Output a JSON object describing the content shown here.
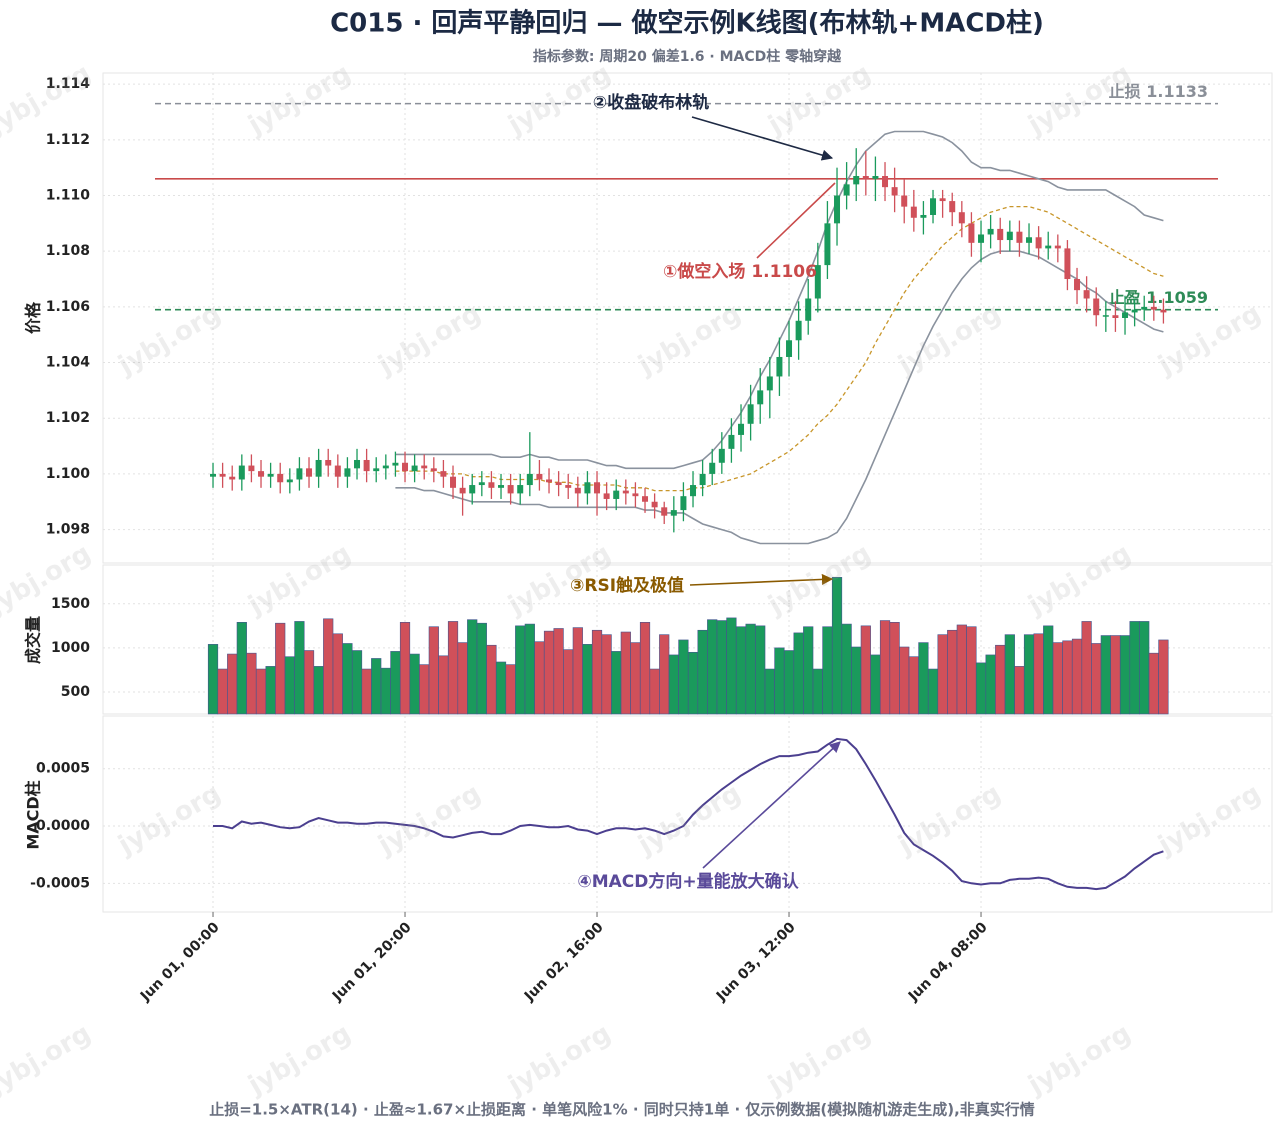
{
  "chart_data": {
    "type": "candlestick",
    "title": "C015 · 回声平静回归 — 做空示例K线图(布林轨+MACD柱)",
    "subtitle": "指标参数: 周期20 偏差1.6 · MACD柱 零轴穿越",
    "footer": "止损=1.5×ATR(14) · 止盈≈1.67×止损距离 · 单笔风险1% · 同时只持1单 · 仅示例数据(模拟随机游走生成),非真实行情",
    "watermark": "jybj.org",
    "ylabel": "价格",
    "up_color": "#1a9a5c",
    "down_color": "#d0505a",
    "x": [
      0,
      1,
      2,
      3,
      4,
      5,
      6,
      7,
      8,
      9,
      10,
      11,
      12,
      13,
      14,
      15,
      16,
      17,
      18,
      19,
      20,
      21,
      22,
      23,
      24,
      25,
      26,
      27,
      28,
      29,
      30,
      31,
      32,
      33,
      34,
      35,
      36,
      37,
      38,
      39,
      40,
      41,
      42,
      43,
      44,
      45,
      46,
      47,
      48,
      49,
      50,
      51,
      52,
      53,
      54,
      55,
      56,
      57,
      58,
      59,
      60,
      61,
      62,
      63,
      64,
      65,
      66,
      67,
      68,
      69,
      70,
      71,
      72,
      73,
      74,
      75,
      76,
      77,
      78,
      79,
      80,
      81,
      82,
      83,
      84,
      85,
      86,
      87,
      88,
      89,
      90,
      91,
      92,
      93,
      94,
      95,
      96,
      97,
      98,
      99
    ],
    "xlim": [
      -11.46,
      110.31
    ],
    "xticks": [
      {
        "value": 0,
        "label": "Jun 01, 00:00"
      },
      {
        "value": 20,
        "label": "Jun 01, 20:00"
      },
      {
        "value": 40,
        "label": "Jun 02, 16:00"
      },
      {
        "value": 60,
        "label": "Jun 03, 12:00"
      },
      {
        "value": 80,
        "label": "Jun 04, 08:00"
      }
    ],
    "open": [
      1.0999,
      1.1,
      1.0999,
      1.0998,
      1.1003,
      1.1001,
      1.0999,
      1.1,
      1.0997,
      1.0998,
      1.1002,
      1.0999,
      1.1005,
      1.1003,
      1.0999,
      1.1002,
      1.1005,
      1.1001,
      1.1002,
      1.1003,
      1.1004,
      1.1001,
      1.1003,
      1.1002,
      1.1001,
      1.0999,
      1.0995,
      1.0993,
      1.0996,
      1.0997,
      1.0995,
      1.0996,
      1.0993,
      1.0996,
      1.1,
      1.0998,
      1.0997,
      1.0996,
      1.0995,
      1.0993,
      1.0997,
      1.0993,
      1.0991,
      1.0994,
      1.0993,
      1.0992,
      1.099,
      1.0988,
      1.0985,
      1.0987,
      1.0992,
      1.0996,
      1.1,
      1.1004,
      1.1009,
      1.1014,
      1.1018,
      1.1025,
      1.103,
      1.1035,
      1.1042,
      1.1048,
      1.1055,
      1.1063,
      1.1075,
      1.109,
      1.11,
      1.1104,
      1.1107,
      1.1106,
      1.1107,
      1.1103,
      1.11,
      1.1096,
      1.1092,
      1.1093,
      1.1099,
      1.1098,
      1.1094,
      1.109,
      1.1083,
      1.1086,
      1.1088,
      1.1084,
      1.1087,
      1.1083,
      1.1085,
      1.1081,
      1.1082,
      1.1081,
      1.107,
      1.1066,
      1.1063,
      1.1057,
      1.1057,
      1.1056,
      1.1058,
      1.1059,
      1.106,
      1.1059
    ],
    "high": [
      1.1004,
      1.1004,
      1.1003,
      1.1007,
      1.1007,
      1.1005,
      1.1004,
      1.1004,
      1.1002,
      1.1006,
      1.1006,
      1.1009,
      1.1009,
      1.1007,
      1.1006,
      1.1009,
      1.1009,
      1.1006,
      1.1007,
      1.1008,
      1.1008,
      1.1007,
      1.1007,
      1.1006,
      1.1005,
      1.1003,
      1.0999,
      1.1,
      1.1001,
      1.1001,
      1.1,
      1.1,
      1.1,
      1.1015,
      1.1005,
      1.1002,
      1.1001,
      1.1,
      1.0999,
      1.1001,
      1.1001,
      1.0997,
      1.0998,
      1.0998,
      1.0997,
      1.0995,
      1.0993,
      1.099,
      1.0992,
      1.0997,
      1.1001,
      1.1005,
      1.1009,
      1.1015,
      1.102,
      1.1025,
      1.1032,
      1.1038,
      1.1042,
      1.1049,
      1.1055,
      1.1062,
      1.107,
      1.1083,
      1.1098,
      1.111,
      1.1112,
      1.1117,
      1.1116,
      1.1114,
      1.1112,
      1.111,
      1.1106,
      1.1102,
      1.1098,
      1.1102,
      1.1102,
      1.1101,
      1.1098,
      1.1094,
      1.1091,
      1.1093,
      1.1092,
      1.1091,
      1.1091,
      1.109,
      1.1089,
      1.1087,
      1.1086,
      1.1084,
      1.1074,
      1.1071,
      1.1067,
      1.1062,
      1.1062,
      1.1064,
      1.1063,
      1.1064,
      1.1064,
      1.1063
    ],
    "low": [
      1.0995,
      1.0995,
      1.0994,
      1.0994,
      1.0997,
      1.0995,
      1.0995,
      1.0993,
      1.0993,
      1.0994,
      1.0995,
      1.0995,
      1.0999,
      1.0995,
      1.0995,
      1.0998,
      1.0997,
      1.0997,
      1.0998,
      1.0999,
      1.0997,
      1.0997,
      1.0998,
      1.0997,
      1.0995,
      1.0991,
      1.0985,
      1.0989,
      1.0992,
      1.0991,
      1.0991,
      1.0989,
      1.0989,
      1.0992,
      1.0994,
      1.0993,
      1.0992,
      1.0991,
      1.0988,
      1.0989,
      1.0985,
      1.0987,
      1.0987,
      1.0989,
      1.0988,
      1.0986,
      1.0984,
      1.0982,
      1.0979,
      1.0983,
      1.0988,
      1.0992,
      1.0996,
      1.1,
      1.1004,
      1.1008,
      1.1012,
      1.1018,
      1.102,
      1.1028,
      1.1035,
      1.1041,
      1.105,
      1.1058,
      1.107,
      1.1082,
      1.1095,
      1.1098,
      1.11,
      1.1098,
      1.1098,
      1.1094,
      1.109,
      1.1087,
      1.1086,
      1.109,
      1.1092,
      1.1089,
      1.1085,
      1.1078,
      1.1076,
      1.1081,
      1.1079,
      1.108,
      1.1078,
      1.1079,
      1.1077,
      1.1077,
      1.1076,
      1.1066,
      1.1061,
      1.1058,
      1.1053,
      1.1051,
      1.1051,
      1.105,
      1.1053,
      1.1055,
      1.1055,
      1.1054
    ],
    "close": [
      1.1,
      1.0999,
      1.0998,
      1.1003,
      1.1001,
      1.0999,
      1.1,
      1.0997,
      1.0998,
      1.1002,
      1.0999,
      1.1005,
      1.1003,
      1.0999,
      1.1002,
      1.1005,
      1.1001,
      1.1002,
      1.1003,
      1.1004,
      1.1001,
      1.1003,
      1.1002,
      1.1001,
      1.0999,
      1.0995,
      1.0993,
      1.0996,
      1.0997,
      1.0995,
      1.0996,
      1.0993,
      1.0996,
      1.1,
      1.0998,
      1.0997,
      1.0996,
      1.0995,
      1.0993,
      1.0997,
      1.0993,
      1.0991,
      1.0994,
      1.0993,
      1.0992,
      1.099,
      1.0988,
      1.0985,
      1.0987,
      1.0992,
      1.0996,
      1.1,
      1.1004,
      1.1009,
      1.1014,
      1.1018,
      1.1025,
      1.103,
      1.1035,
      1.1042,
      1.1048,
      1.1055,
      1.1063,
      1.1075,
      1.109,
      1.11,
      1.1104,
      1.1107,
      1.1106,
      1.1107,
      1.1103,
      1.11,
      1.1096,
      1.1092,
      1.1093,
      1.1099,
      1.1098,
      1.1094,
      1.109,
      1.1083,
      1.1086,
      1.1088,
      1.1084,
      1.1087,
      1.1083,
      1.1085,
      1.1081,
      1.1082,
      1.1081,
      1.107,
      1.1066,
      1.1063,
      1.1057,
      1.1057,
      1.1056,
      1.1058,
      1.1059,
      1.106,
      1.1059,
      1.1058
    ],
    "ylim": [
      1.0968,
      1.1144
    ],
    "yticks": [
      1.098,
      {
        "value": 1.1,
        "label": "1.100"
      },
      1.102,
      1.104,
      1.106,
      1.108,
      {
        "value": 1.11,
        "label": "1.110"
      },
      1.112,
      1.114
    ],
    "bollinger": [
      {
        "color": "#8a929e",
        "dash": false,
        "values": [
          null,
          null,
          null,
          null,
          null,
          null,
          null,
          null,
          null,
          null,
          null,
          null,
          null,
          null,
          null,
          null,
          null,
          null,
          null,
          1.1007,
          1.1007,
          1.1007,
          1.1007,
          1.1007,
          1.1007,
          1.1007,
          1.1007,
          1.1007,
          1.1007,
          1.1007,
          1.1006,
          1.1006,
          1.1006,
          1.1007,
          1.1006,
          1.1006,
          1.1005,
          1.1005,
          1.1005,
          1.1005,
          1.1004,
          1.1003,
          1.1003,
          1.1002,
          1.1002,
          1.1002,
          1.1002,
          1.1002,
          1.1002,
          1.1003,
          1.1004,
          1.1005,
          1.1008,
          1.1012,
          1.1017,
          1.1022,
          1.1028,
          1.1035,
          1.1041,
          1.1048,
          1.1055,
          1.1063,
          1.1071,
          1.108,
          1.109,
          1.1098,
          1.1105,
          1.1111,
          1.1116,
          1.1119,
          1.1122,
          1.1123,
          1.1123,
          1.1123,
          1.1123,
          1.1122,
          1.1121,
          1.1119,
          1.1116,
          1.1112,
          1.111,
          1.111,
          1.1109,
          1.1109,
          1.1108,
          1.1107,
          1.1106,
          1.1105,
          1.1103,
          1.1102,
          1.1102,
          1.1102,
          1.1102,
          1.1102,
          1.11,
          1.1098,
          1.1096,
          1.1093,
          1.1092,
          1.1091
        ]
      },
      {
        "color": "#c8962a",
        "dash": true,
        "values": [
          null,
          null,
          null,
          null,
          null,
          null,
          null,
          null,
          null,
          null,
          null,
          null,
          null,
          null,
          null,
          null,
          null,
          null,
          null,
          1.1001,
          1.1001,
          1.1001,
          1.1001,
          1.1001,
          1.1,
          1.1,
          1.1,
          1.0999,
          1.0999,
          1.0999,
          1.0998,
          1.0998,
          1.0998,
          1.0998,
          1.0998,
          1.0997,
          1.0997,
          1.0997,
          1.0996,
          1.0996,
          1.0996,
          1.0996,
          1.0996,
          1.0995,
          1.0995,
          1.0995,
          1.0994,
          1.0994,
          1.0994,
          1.0994,
          1.0995,
          1.0995,
          1.0996,
          1.0997,
          1.0998,
          1.0999,
          1.1,
          1.1002,
          1.1004,
          1.1006,
          1.1008,
          1.1011,
          1.1014,
          1.1018,
          1.1021,
          1.1025,
          1.103,
          1.1035,
          1.104,
          1.1047,
          1.1053,
          1.1059,
          1.1065,
          1.107,
          1.1074,
          1.1078,
          1.1082,
          1.1085,
          1.1088,
          1.109,
          1.1092,
          1.1094,
          1.1095,
          1.1096,
          1.1096,
          1.1096,
          1.1095,
          1.1094,
          1.1092,
          1.109,
          1.1088,
          1.1086,
          1.1084,
          1.1082,
          1.108,
          1.1078,
          1.1076,
          1.1074,
          1.1072,
          1.1071
        ]
      },
      {
        "color": "#8a929e",
        "dash": false,
        "values": [
          null,
          null,
          null,
          null,
          null,
          null,
          null,
          null,
          null,
          null,
          null,
          null,
          null,
          null,
          null,
          null,
          null,
          null,
          null,
          1.0995,
          1.0995,
          1.0995,
          1.0994,
          1.0994,
          1.0993,
          1.0992,
          1.0991,
          1.099,
          1.099,
          1.099,
          1.099,
          1.099,
          1.0989,
          1.0989,
          1.0989,
          1.0988,
          1.0988,
          1.0988,
          1.0988,
          1.0988,
          1.0988,
          1.0988,
          1.0988,
          1.0988,
          1.0988,
          1.0987,
          1.0987,
          1.0986,
          1.0986,
          1.0986,
          1.0984,
          1.0982,
          1.0981,
          1.098,
          1.0979,
          1.0977,
          1.0976,
          1.0975,
          1.0975,
          1.0975,
          1.0975,
          1.0975,
          1.0975,
          1.0976,
          1.0977,
          1.0979,
          1.0984,
          1.0991,
          1.0998,
          1.1006,
          1.1014,
          1.1022,
          1.103,
          1.1038,
          1.1046,
          1.1053,
          1.1059,
          1.1065,
          1.107,
          1.1074,
          1.1077,
          1.1079,
          1.108,
          1.108,
          1.108,
          1.1079,
          1.1078,
          1.1076,
          1.1074,
          1.1072,
          1.107,
          1.1067,
          1.1065,
          1.1062,
          1.106,
          1.1058,
          1.1056,
          1.1054,
          1.1052,
          1.1051
        ]
      }
    ],
    "levels": [
      {
        "value": 1.1133,
        "label": "止损 1.1133",
        "color": "#8a8f98",
        "dash": true
      },
      {
        "value": 1.1106,
        "color": "#c94a4a",
        "dash": false
      },
      {
        "value": 1.1059,
        "label": "止盈 1.1059",
        "color": "#2e8b57",
        "dash": true
      }
    ],
    "annotations": [
      {
        "text": "②收盘破布林轨",
        "color": "#1e2a44"
      },
      {
        "text": "①做空入场 1.1106",
        "color": "#c94a4a"
      },
      {
        "text": "③RSI触及极值",
        "color": "#8a5a00"
      },
      {
        "text": "④MACD方向+量能放大确认",
        "color": "#5a4a9a"
      }
    ],
    "volume": {
      "ylabel": "成交量",
      "ylim": [
        250,
        1940
      ],
      "yticks": [
        500,
        1000,
        1500
      ],
      "values": [
        1040,
        760,
        930,
        1290,
        940,
        760,
        790,
        1280,
        900,
        1300,
        970,
        790,
        1330,
        1160,
        1050,
        970,
        760,
        880,
        770,
        960,
        1290,
        930,
        810,
        1240,
        910,
        1300,
        1060,
        1320,
        1280,
        1030,
        840,
        810,
        1250,
        1270,
        1070,
        1190,
        1220,
        980,
        1230,
        1040,
        1200,
        1150,
        960,
        1180,
        1060,
        1290,
        760,
        1150,
        920,
        1090,
        950,
        1200,
        1320,
        1310,
        1340,
        1240,
        1270,
        1250,
        760,
        1000,
        970,
        1170,
        1240,
        760,
        1240,
        1800,
        1270,
        1010,
        1250,
        920,
        1310,
        1290,
        1010,
        900,
        1060,
        760,
        1150,
        1200,
        1260,
        1240,
        830,
        920,
        1030,
        1150,
        790,
        1150,
        1160,
        1250,
        1060,
        1080,
        1100,
        1300,
        1050,
        1140,
        1140,
        1140,
        1300,
        1300,
        940,
        1090
      ]
    },
    "macd": {
      "ylabel": "MACD柱",
      "color": "#4b3f8f",
      "ylim": [
        -0.00075,
        0.00096
      ],
      "yticks": [
        -0.0005,
        {
          "value": 0,
          "label": "0.0000"
        },
        0.0005
      ],
      "values": [
        0,
        0,
        -2e-05,
        4e-05,
        2e-05,
        3e-05,
        1e-05,
        -1e-05,
        -2e-05,
        -1e-05,
        4e-05,
        7e-05,
        5e-05,
        3e-05,
        3e-05,
        2e-05,
        2e-05,
        3e-05,
        3e-05,
        2e-05,
        1e-05,
        0,
        -2e-05,
        -5e-05,
        -9e-05,
        -0.0001,
        -8e-05,
        -6e-05,
        -5e-05,
        -7e-05,
        -7e-05,
        -4e-05,
        0,
        1e-05,
        0,
        -1e-05,
        -1e-05,
        0,
        -3e-05,
        -4e-05,
        -7e-05,
        -4e-05,
        -2e-05,
        -2e-05,
        -3e-05,
        -2e-05,
        -4e-05,
        -7e-05,
        -4e-05,
        0,
        0.0001,
        0.00018,
        0.00025,
        0.00032,
        0.00038,
        0.00044,
        0.00049,
        0.00054,
        0.00058,
        0.00061,
        0.00061,
        0.00062,
        0.00064,
        0.00065,
        0.00071,
        0.00076,
        0.00075,
        0.00067,
        0.00054,
        0.0004,
        0.00025,
        0.0001,
        -6e-05,
        -0.00016,
        -0.00021,
        -0.00026,
        -0.00032,
        -0.00039,
        -0.00048,
        -0.0005,
        -0.00051,
        -0.0005,
        -0.0005,
        -0.00047,
        -0.00046,
        -0.00046,
        -0.00045,
        -0.00046,
        -0.0005,
        -0.00053,
        -0.00054,
        -0.00054,
        -0.00055,
        -0.00054,
        -0.00049,
        -0.00044,
        -0.00037,
        -0.00031,
        -0.00025,
        -0.00022
      ]
    }
  }
}
